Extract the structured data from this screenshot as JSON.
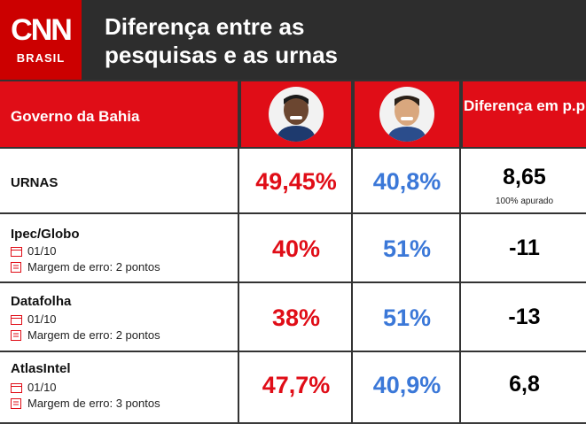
{
  "header": {
    "logo_text": "CNN",
    "logo_sub": "BRASIL",
    "title_line1": "Diferença entre as",
    "title_line2": "pesquisas e as urnas"
  },
  "table": {
    "col_label": "Governo da Bahia",
    "col_diff": "Diferença em p.p",
    "candidate1_photo": "candidate-1-photo",
    "candidate2_photo": "candidate-2-photo",
    "rows": [
      {
        "name": "URNAS",
        "c1": "49,45%",
        "c2": "40,8%",
        "diff": "8,65",
        "note": "100% apurado"
      },
      {
        "name": "Ipec/Globo",
        "date": "01/10",
        "margin": "Margem de erro: 2 pontos",
        "c1": "40%",
        "c2": "51%",
        "diff": "-11"
      },
      {
        "name": "Datafolha",
        "date": "01/10",
        "margin": "Margem de erro: 2 pontos",
        "c1": "38%",
        "c2": "51%",
        "diff": "-13"
      },
      {
        "name": "AtlasIntel",
        "date": "01/10",
        "margin": "Margem de erro: 3 pontos",
        "c1": "47,7%",
        "c2": "40,9%",
        "diff": "6,8"
      }
    ]
  },
  "colors": {
    "red": "#e00d17",
    "blue": "#3b78d8",
    "dark": "#2d2d2d"
  }
}
